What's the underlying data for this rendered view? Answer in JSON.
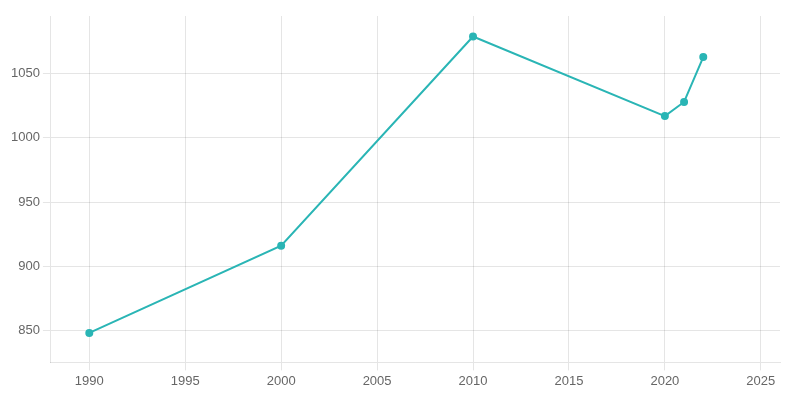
{
  "chart_data": {
    "type": "line",
    "x": [
      1990,
      2000,
      2010,
      2020,
      2021,
      2022
    ],
    "values": [
      848,
      916,
      1079,
      1017,
      1028,
      1063
    ],
    "color": "#2ab5b5",
    "marker": "circle",
    "xlim": [
      1988,
      2026
    ],
    "ylim": [
      825,
      1095
    ],
    "xticks": [
      1990,
      1995,
      2000,
      2005,
      2010,
      2015,
      2020,
      2025
    ],
    "yticks": [
      850,
      900,
      950,
      1000,
      1050
    ],
    "grid": true
  }
}
